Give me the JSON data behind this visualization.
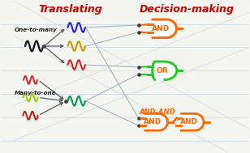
{
  "title_left": "Translating",
  "title_right": "Decision-making",
  "title_color": "#cc0000",
  "bg_color": "#f5f5f0",
  "label_one_to_many": "One-to-many",
  "label_many_to_one": "Many-to-one",
  "label_and_and": "AND-AND",
  "label_color": "#222222",
  "gate_and_color": "#ff6600",
  "gate_or_color": "#22cc22",
  "wave_black": "#111111",
  "wave_blue": "#2222dd",
  "wave_gold": "#cc9900",
  "wave_red": "#dd2222",
  "wave_ygreen": "#99cc00",
  "wave_teal": "#009955",
  "wave_darkred": "#cc1111",
  "grid_color": "#c8d8e8",
  "connect_color": "#99aabb",
  "arrow_color": "#555566"
}
